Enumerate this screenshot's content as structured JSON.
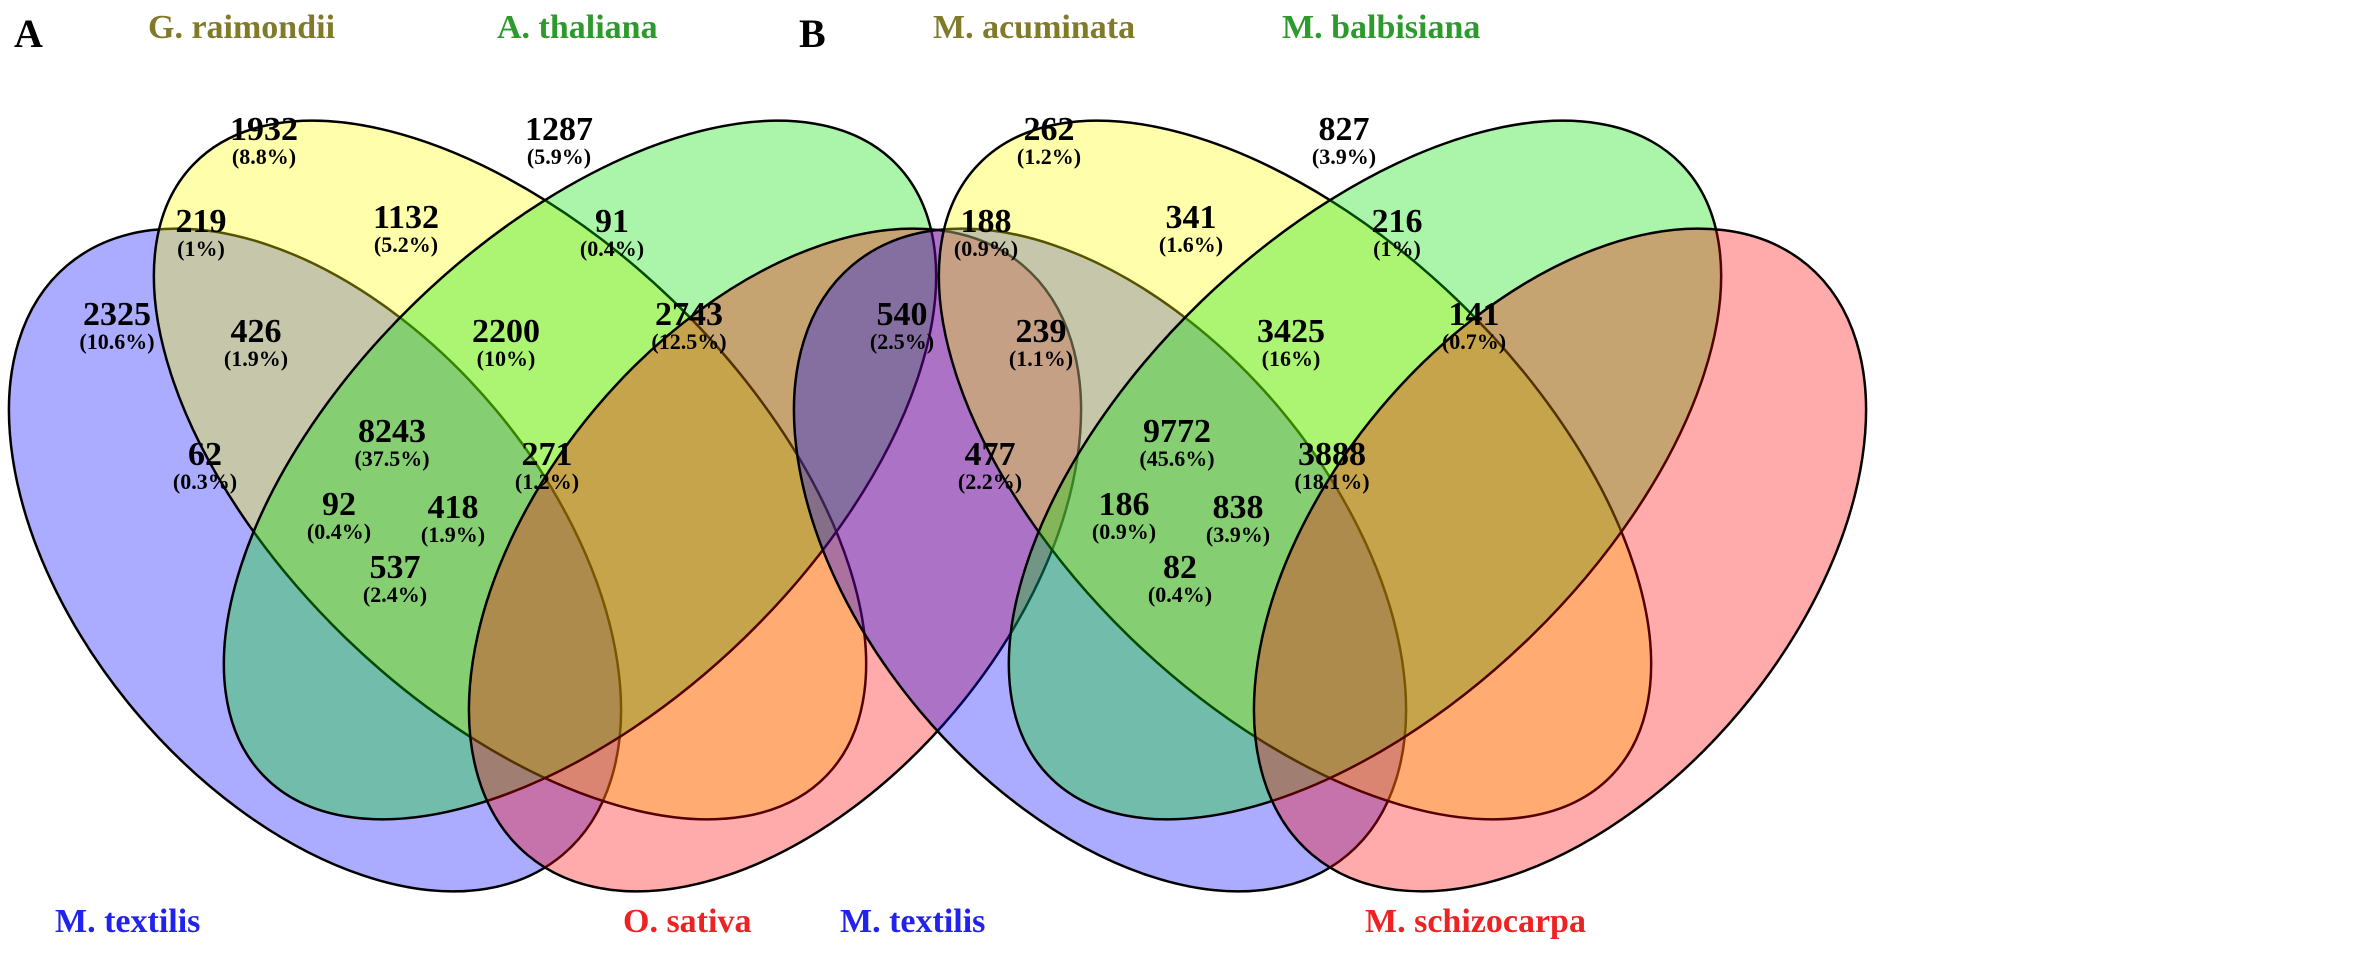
{
  "panels": [
    {
      "label": "A",
      "sets": [
        {
          "name": "G. raimondii",
          "color": "#807a2a",
          "fill": "#ffff00"
        },
        {
          "name": "A. thaliana",
          "color": "#2e9a2e",
          "fill": "#00e000"
        },
        {
          "name": "M. textilis",
          "color": "#2222ee",
          "fill": "#0000ff"
        },
        {
          "name": "O. sativa",
          "color": "#ee2222",
          "fill": "#ff0000"
        }
      ],
      "regions": {
        "t": {
          "n": "2325",
          "p": "(10.6%)"
        },
        "g": {
          "n": "1932",
          "p": "(8.8%)"
        },
        "a": {
          "n": "1287",
          "p": "(5.9%)"
        },
        "o": {
          "n": "2743",
          "p": "(12.5%)"
        },
        "tg": {
          "n": "219",
          "p": "(1%)"
        },
        "ga": {
          "n": "1132",
          "p": "(5.2%)"
        },
        "ao": {
          "n": "91",
          "p": "(0.4%)"
        },
        "tga": {
          "n": "426",
          "p": "(1.9%)"
        },
        "gao": {
          "n": "2200",
          "p": "(10%)"
        },
        "ta": {
          "n": "62",
          "p": "(0.3%)"
        },
        "tgao": {
          "n": "8243",
          "p": "(37.5%)"
        },
        "go": {
          "n": "271",
          "p": "(1.2%)"
        },
        "tao": {
          "n": "92",
          "p": "(0.4%)"
        },
        "tgo": {
          "n": "418",
          "p": "(1.9%)"
        },
        "to": {
          "n": "537",
          "p": "(2.4%)"
        }
      }
    },
    {
      "label": "B",
      "sets": [
        {
          "name": "M. acuminata",
          "color": "#807a2a",
          "fill": "#ffff00"
        },
        {
          "name": "M. balbisiana",
          "color": "#2e9a2e",
          "fill": "#00e000"
        },
        {
          "name": "M. textilis",
          "color": "#2222ee",
          "fill": "#0000ff"
        },
        {
          "name": "M. schizocarpa",
          "color": "#ee2222",
          "fill": "#ff0000"
        }
      ],
      "regions": {
        "t": {
          "n": "540",
          "p": "(2.5%)"
        },
        "g": {
          "n": "262",
          "p": "(1.2%)"
        },
        "a": {
          "n": "827",
          "p": "(3.9%)"
        },
        "o": {
          "n": "141",
          "p": "(0.7%)"
        },
        "tg": {
          "n": "188",
          "p": "(0.9%)"
        },
        "ga": {
          "n": "341",
          "p": "(1.6%)"
        },
        "ao": {
          "n": "216",
          "p": "(1%)"
        },
        "tga": {
          "n": "239",
          "p": "(1.1%)"
        },
        "gao": {
          "n": "3425",
          "p": "(16%)"
        },
        "ta": {
          "n": "477",
          "p": "(2.2%)"
        },
        "tgao": {
          "n": "9772",
          "p": "(45.6%)"
        },
        "go": {
          "n": "3888",
          "p": "(18.1%)"
        },
        "tao": {
          "n": "186",
          "p": "(0.9%)"
        },
        "tgo": {
          "n": "838",
          "p": "(3.9%)"
        },
        "to": {
          "n": "82",
          "p": "(0.4%)"
        }
      }
    }
  ]
}
